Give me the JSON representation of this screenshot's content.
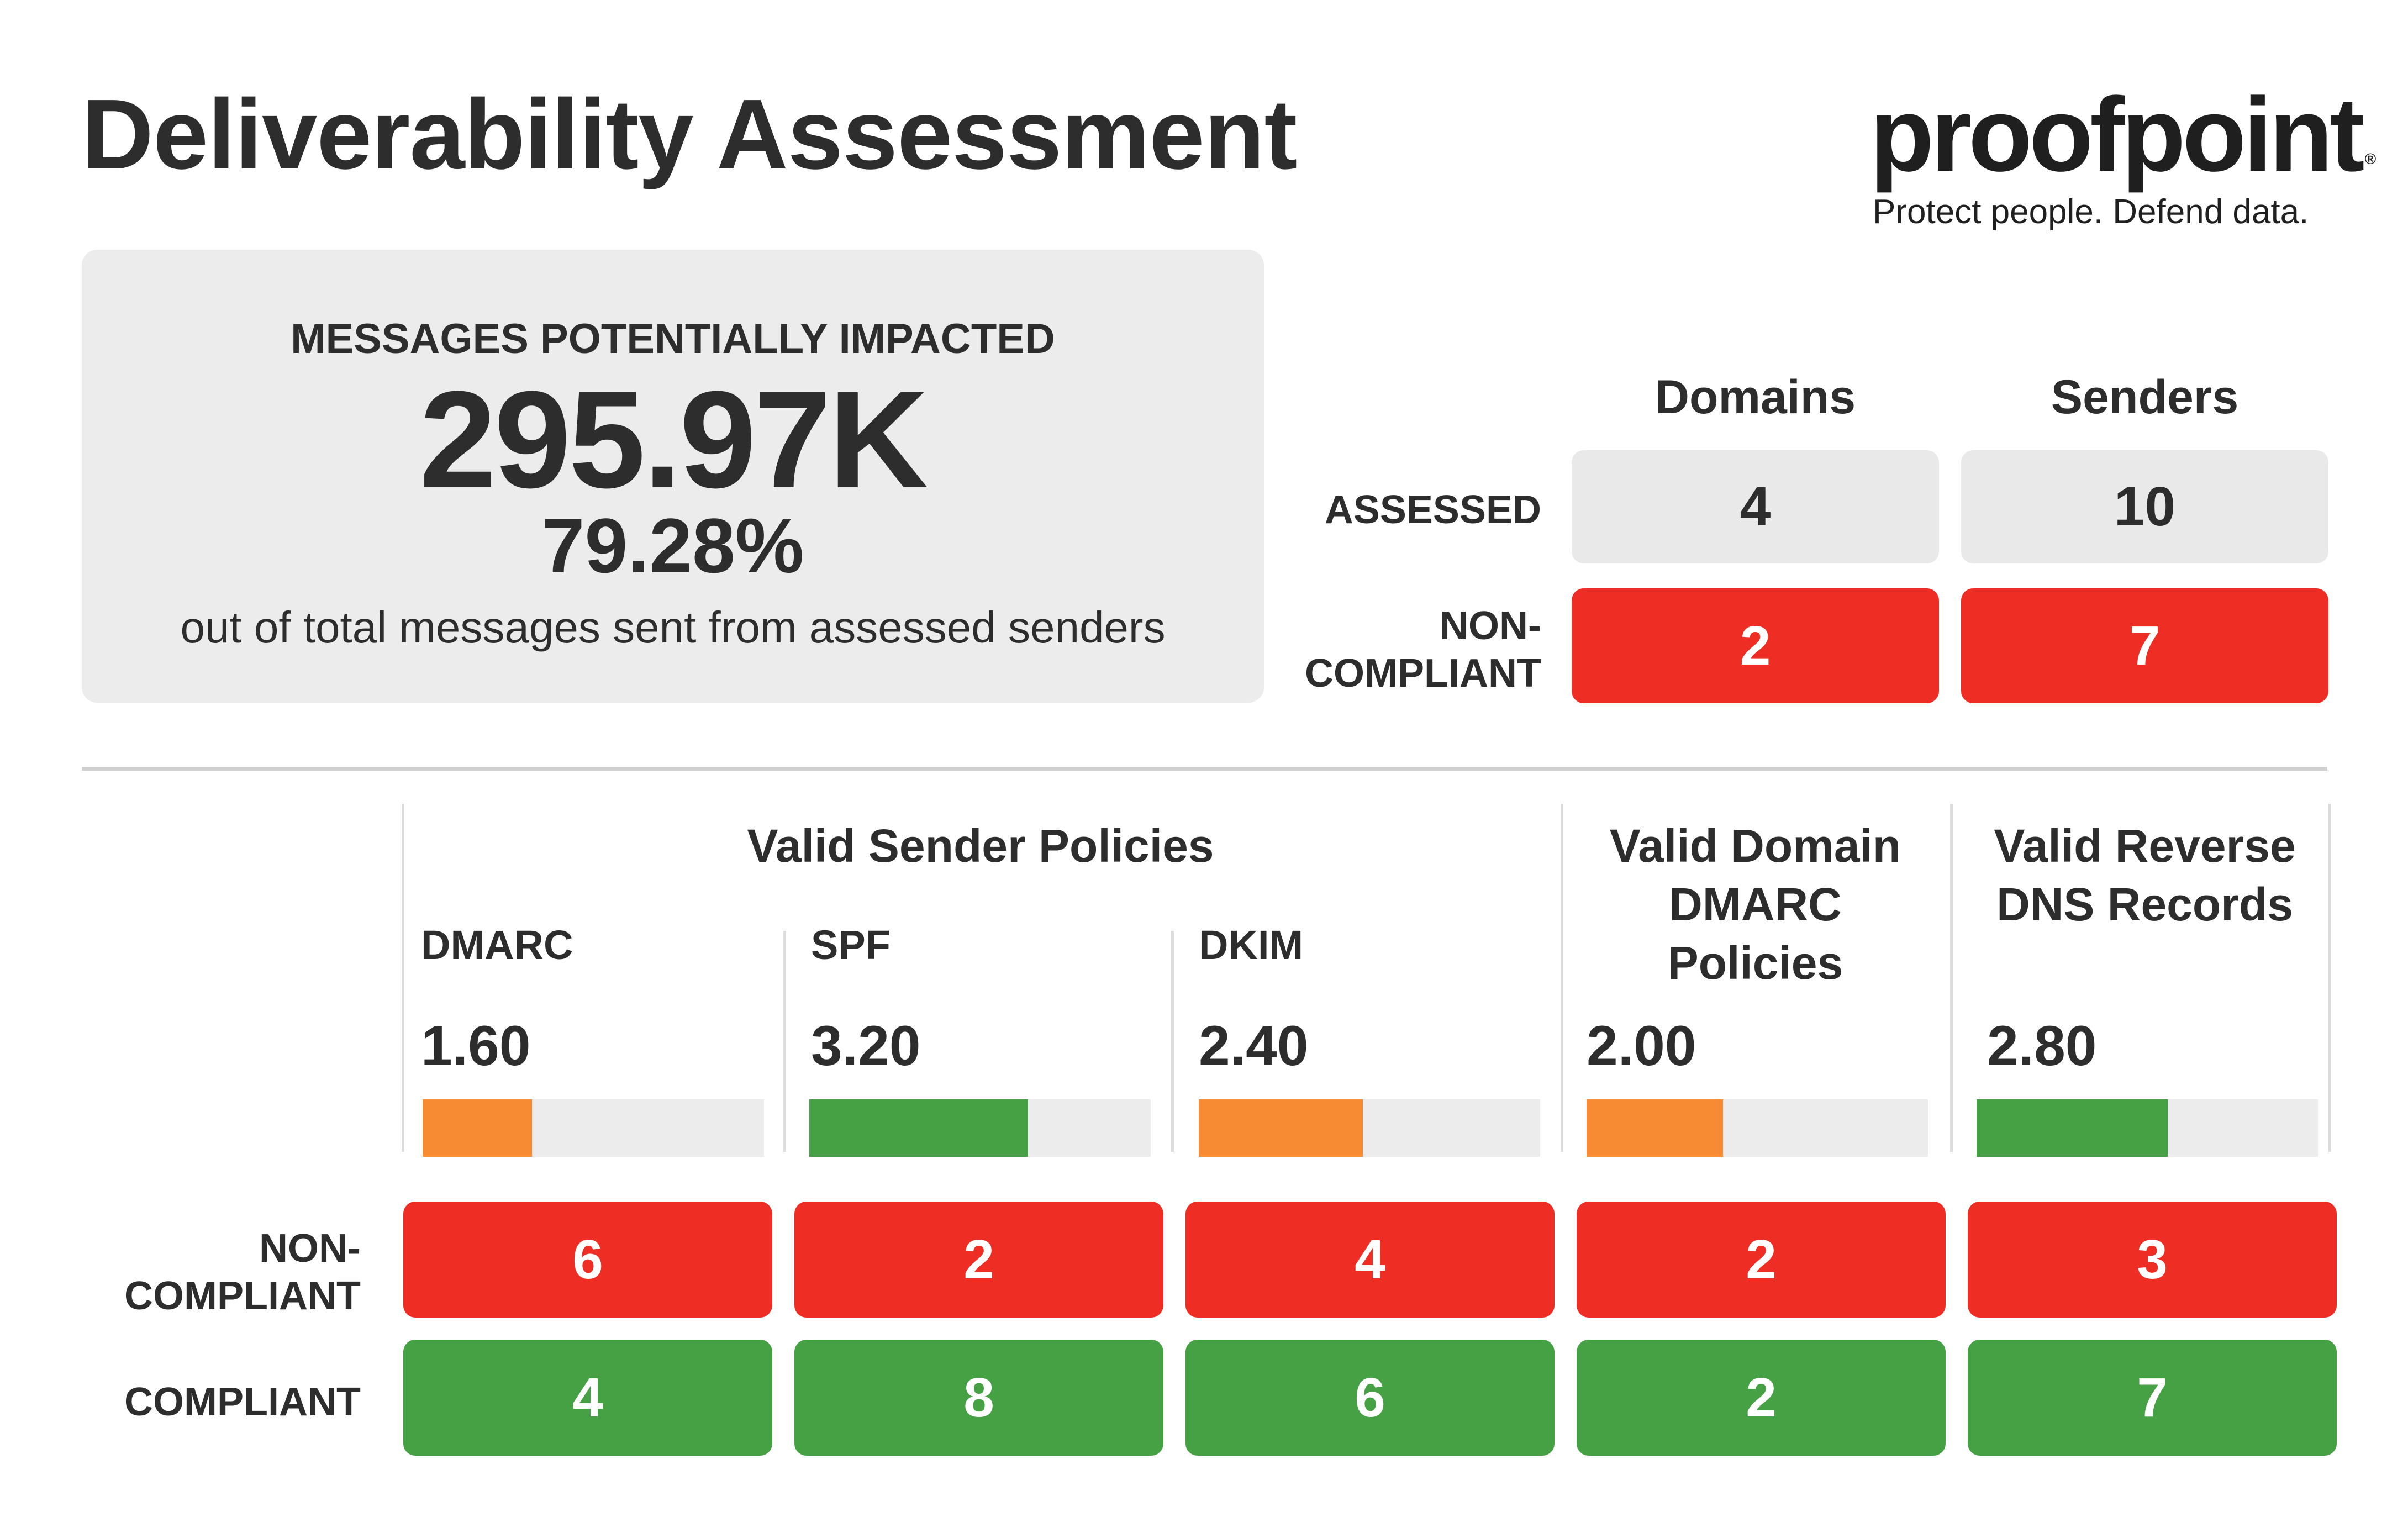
{
  "header": {
    "title": "Deliverability Assessment",
    "logo_text": "proofpoint",
    "logo_mark": "®",
    "tagline": "Protect people. Defend data."
  },
  "impact": {
    "label": "MESSAGES POTENTIALLY IMPACTED",
    "value": "295.97K",
    "percent": "79.28%",
    "description": "out of total messages sent from assessed senders"
  },
  "summary": {
    "columns": [
      "Domains",
      "Senders"
    ],
    "rows": [
      {
        "label": "ASSESSED",
        "values": [
          "4",
          "10"
        ]
      },
      {
        "label_line1": "NON-",
        "label_line2": "COMPLIANT",
        "values": [
          "2",
          "7"
        ]
      }
    ]
  },
  "policies": {
    "groups": [
      {
        "title": "Valid Sender Policies"
      },
      {
        "title_lines": [
          "Valid Domain",
          "DMARC",
          "Policies"
        ]
      },
      {
        "title_lines": [
          "Valid Reverse",
          "DNS Records"
        ]
      }
    ],
    "metrics": [
      {
        "name": "DMARC",
        "score": "1.60",
        "fill": 0.32,
        "color": "#f68b33",
        "non_compliant": "6",
        "compliant": "4"
      },
      {
        "name": "SPF",
        "score": "3.20",
        "fill": 0.64,
        "color": "#45a143",
        "non_compliant": "2",
        "compliant": "8"
      },
      {
        "name": "DKIM",
        "score": "2.40",
        "fill": 0.48,
        "color": "#f68b33",
        "non_compliant": "4",
        "compliant": "6"
      },
      {
        "name": "",
        "score": "2.00",
        "fill": 0.4,
        "color": "#f68b33",
        "non_compliant": "2",
        "compliant": "2"
      },
      {
        "name": "",
        "score": "2.80",
        "fill": 0.56,
        "color": "#45a143",
        "non_compliant": "3",
        "compliant": "7"
      }
    ],
    "row_labels": {
      "non_compliant_line1": "NON-",
      "non_compliant_line2": "COMPLIANT",
      "compliant": "COMPLIANT"
    }
  },
  "colors": {
    "red": "#ee2e24",
    "green": "#45a143",
    "orange": "#f68b33",
    "panel_grey": "#ececec"
  }
}
